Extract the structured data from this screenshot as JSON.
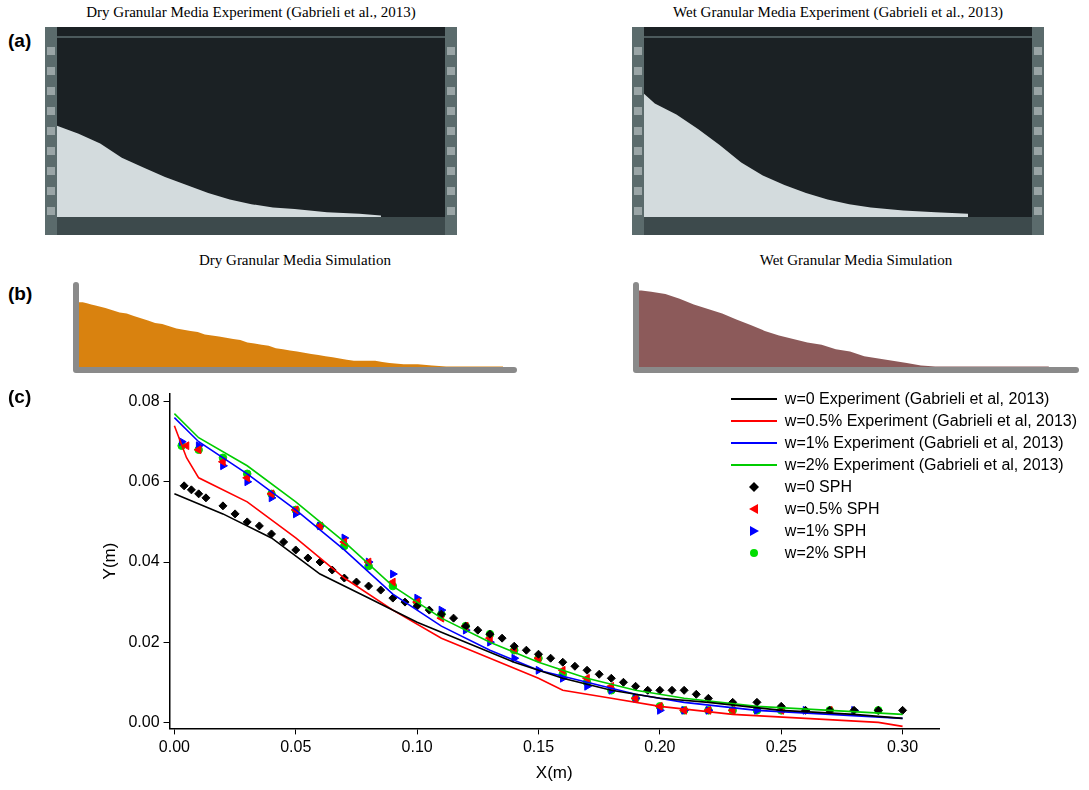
{
  "figure": {
    "panels": [
      {
        "label": "(a)",
        "titles": [
          "Dry Granular Media Experiment (Gabrieli et al., 2013)",
          "Wet Granular Media Experiment (Gabrieli et al., 2013)"
        ]
      },
      {
        "label": "(b)",
        "titles": [
          "Dry Granular Media Simulation",
          "Wet Granular Media Simulation"
        ]
      },
      {
        "label": "(c)"
      }
    ]
  },
  "chart_data": {
    "type": "line",
    "x_label": "X(m)",
    "y_label": "Y(m)",
    "xlim": [
      -0.002,
      0.315
    ],
    "xticks": [
      {
        "value": 0,
        "label": "0.00"
      },
      0.05,
      {
        "value": 0.1,
        "label": "0.10"
      },
      0.15,
      {
        "value": 0.2,
        "label": "0.20"
      },
      0.25,
      {
        "value": 0.3,
        "label": "0.30"
      }
    ],
    "ylim": [
      -0.0015,
      0.082
    ],
    "yticks": [
      {
        "value": 0,
        "label": "0.00"
      },
      0.02,
      0.04,
      0.06,
      0.08
    ],
    "grid": false,
    "legend": "upper right",
    "series": [
      {
        "name": "w=0 Experiment (Gabrieli et al, 2013)",
        "type": "line",
        "color": "#000000",
        "line_style": "solid",
        "marker": "none",
        "x": [
          0,
          0.02,
          0.04,
          0.06,
          0.08,
          0.1,
          0.12,
          0.14,
          0.16,
          0.18,
          0.2,
          0.22,
          0.25,
          0.28,
          0.3
        ],
        "values": [
          0.057,
          0.052,
          0.046,
          0.037,
          0.031,
          0.025,
          0.02,
          0.015,
          0.011,
          0.008,
          0.006,
          0.005,
          0.003,
          0.002,
          0.001
        ]
      },
      {
        "name": "w=0.5% Experiment (Gabrieli et al, 2013)",
        "type": "line",
        "color": "#ff0000",
        "line_style": "solid",
        "marker": "none",
        "x": [
          0,
          0.005,
          0.01,
          0.03,
          0.05,
          0.07,
          0.09,
          0.11,
          0.13,
          0.15,
          0.16,
          0.18,
          0.2,
          0.23,
          0.26,
          0.29,
          0.3
        ],
        "values": [
          0.074,
          0.066,
          0.061,
          0.055,
          0.046,
          0.036,
          0.028,
          0.021,
          0.016,
          0.011,
          0.008,
          0.006,
          0.004,
          0.002,
          0.001,
          0.0,
          -0.001
        ]
      },
      {
        "name": "w=1% Experiment (Gabrieli et al, 2013)",
        "type": "line",
        "color": "#0000ff",
        "line_style": "solid",
        "marker": "none",
        "x": [
          0,
          0.01,
          0.03,
          0.05,
          0.07,
          0.09,
          0.11,
          0.13,
          0.15,
          0.17,
          0.19,
          0.21,
          0.24,
          0.27,
          0.3
        ],
        "values": [
          0.076,
          0.07,
          0.062,
          0.053,
          0.043,
          0.032,
          0.024,
          0.018,
          0.013,
          0.01,
          0.007,
          0.005,
          0.003,
          0.002,
          0.001
        ]
      },
      {
        "name": "w=2% Experiment (Gabrieli et al, 2013)",
        "type": "line",
        "color": "#00cc00",
        "line_style": "solid",
        "marker": "none",
        "x": [
          0,
          0.01,
          0.03,
          0.05,
          0.07,
          0.09,
          0.11,
          0.13,
          0.15,
          0.17,
          0.19,
          0.21,
          0.24,
          0.27,
          0.3
        ],
        "values": [
          0.077,
          0.071,
          0.064,
          0.055,
          0.045,
          0.034,
          0.026,
          0.02,
          0.015,
          0.011,
          0.008,
          0.006,
          0.004,
          0.003,
          0.002
        ]
      },
      {
        "name": "w=0 SPH",
        "type": "scatter",
        "color": "#000000",
        "marker": "diamond",
        "x": [
          0.004,
          0.007,
          0.01,
          0.013,
          0.02,
          0.025,
          0.03,
          0.035,
          0.04,
          0.045,
          0.05,
          0.055,
          0.06,
          0.065,
          0.07,
          0.075,
          0.08,
          0.085,
          0.09,
          0.095,
          0.1,
          0.105,
          0.11,
          0.115,
          0.12,
          0.125,
          0.13,
          0.135,
          0.14,
          0.145,
          0.15,
          0.155,
          0.16,
          0.165,
          0.17,
          0.175,
          0.18,
          0.185,
          0.19,
          0.195,
          0.2,
          0.205,
          0.21,
          0.215,
          0.22,
          0.23,
          0.24,
          0.25,
          0.26,
          0.27,
          0.28,
          0.29,
          0.3
        ],
        "values": [
          0.059,
          0.058,
          0.057,
          0.056,
          0.054,
          0.052,
          0.05,
          0.049,
          0.047,
          0.045,
          0.043,
          0.041,
          0.04,
          0.038,
          0.036,
          0.035,
          0.034,
          0.033,
          0.031,
          0.03,
          0.029,
          0.028,
          0.027,
          0.026,
          0.024,
          0.023,
          0.022,
          0.021,
          0.019,
          0.018,
          0.017,
          0.016,
          0.015,
          0.014,
          0.013,
          0.012,
          0.011,
          0.01,
          0.009,
          0.008,
          0.008,
          0.008,
          0.008,
          0.007,
          0.006,
          0.005,
          0.005,
          0.004,
          0.003,
          0.003,
          0.003,
          0.003,
          0.003
        ]
      },
      {
        "name": "w=0.5% SPH",
        "type": "scatter",
        "color": "#ff0000",
        "marker": "triangle-left",
        "x": [
          0.005,
          0.01,
          0.02,
          0.03,
          0.04,
          0.05,
          0.06,
          0.07,
          0.08,
          0.09,
          0.1,
          0.11,
          0.12,
          0.13,
          0.14,
          0.15,
          0.16,
          0.17,
          0.18,
          0.19,
          0.2,
          0.21,
          0.22,
          0.23,
          0.25,
          0.27
        ],
        "values": [
          0.069,
          0.068,
          0.065,
          0.061,
          0.057,
          0.053,
          0.049,
          0.045,
          0.04,
          0.035,
          0.03,
          0.026,
          0.024,
          0.021,
          0.018,
          0.016,
          0.013,
          0.011,
          0.009,
          0.006,
          0.004,
          0.003,
          0.003,
          0.003,
          0.003,
          0.003
        ]
      },
      {
        "name": "w=1% SPH",
        "type": "scatter",
        "color": "#0000ff",
        "marker": "triangle-right",
        "x": [
          0.003,
          0.01,
          0.02,
          0.03,
          0.04,
          0.05,
          0.06,
          0.07,
          0.08,
          0.09,
          0.1,
          0.11,
          0.12,
          0.13,
          0.14,
          0.15,
          0.16,
          0.17,
          0.18,
          0.19,
          0.2,
          0.21,
          0.22,
          0.24,
          0.26,
          0.28
        ],
        "values": [
          0.07,
          0.069,
          0.064,
          0.06,
          0.056,
          0.052,
          0.049,
          0.046,
          0.04,
          0.037,
          0.031,
          0.028,
          0.023,
          0.02,
          0.016,
          0.013,
          0.011,
          0.009,
          0.008,
          0.006,
          0.003,
          0.003,
          0.003,
          0.003,
          0.003,
          0.003
        ]
      },
      {
        "name": "w=2% SPH",
        "type": "scatter",
        "color": "#00dd00",
        "marker": "circle",
        "x": [
          0.003,
          0.01,
          0.02,
          0.03,
          0.04,
          0.05,
          0.06,
          0.07,
          0.08,
          0.09,
          0.1,
          0.11,
          0.12,
          0.13,
          0.14,
          0.15,
          0.16,
          0.17,
          0.18,
          0.19,
          0.2,
          0.21,
          0.22,
          0.23,
          0.24,
          0.25,
          0.27,
          0.29
        ],
        "values": [
          0.069,
          0.068,
          0.066,
          0.062,
          0.057,
          0.053,
          0.049,
          0.044,
          0.039,
          0.034,
          0.03,
          0.027,
          0.024,
          0.022,
          0.018,
          0.016,
          0.012,
          0.01,
          0.008,
          0.006,
          0.004,
          0.003,
          0.003,
          0.003,
          0.003,
          0.003,
          0.003,
          0.003
        ]
      }
    ]
  }
}
